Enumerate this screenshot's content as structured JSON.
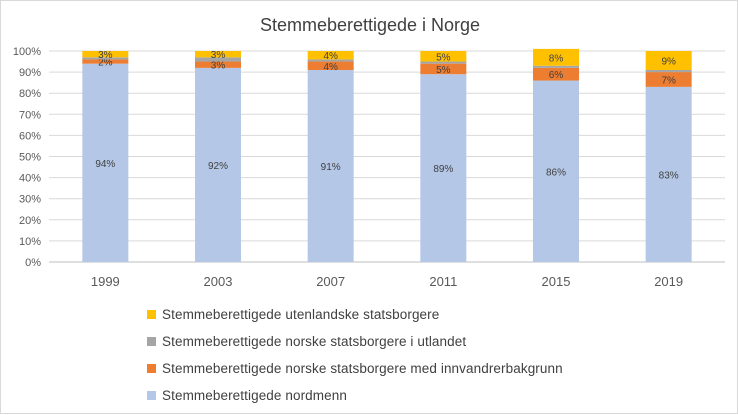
{
  "chart_data": {
    "type": "bar",
    "stacked": true,
    "title": "Stemmeberettigede i Norge",
    "categories": [
      "1999",
      "2003",
      "2007",
      "2011",
      "2015",
      "2019"
    ],
    "y_ticks": [
      "0%",
      "10%",
      "20%",
      "30%",
      "40%",
      "50%",
      "60%",
      "70%",
      "80%",
      "90%",
      "100%"
    ],
    "ylim": [
      0,
      100
    ],
    "series": [
      {
        "name": "Stemmeberettigede nordmenn",
        "color": "#b4c7e7",
        "values": [
          94,
          92,
          91,
          89,
          86,
          83
        ],
        "labels": [
          "94%",
          "92%",
          "91%",
          "89%",
          "86%",
          "83%"
        ]
      },
      {
        "name": "Stemmeberettigede norske statsborgere med innvandrerbakgrunn",
        "color": "#ed7d31",
        "values": [
          2,
          3,
          4,
          5,
          6,
          7
        ],
        "labels": [
          "2%",
          "3%",
          "4%",
          "5%",
          "6%",
          "7%"
        ]
      },
      {
        "name": "Stemmeberettigede norske statsborgere i utlandet",
        "color": "#a5a5a5",
        "values": [
          1,
          2,
          1,
          1,
          1,
          1
        ],
        "labels": []
      },
      {
        "name": "Stemmeberettigede utenlandske statsborgere",
        "color": "#ffc000",
        "values": [
          3,
          3,
          4,
          5,
          8,
          9
        ],
        "labels": [
          "3%",
          "3%",
          "4%",
          "5%",
          "8%",
          "9%"
        ]
      }
    ],
    "legend_order": [
      3,
      2,
      1,
      0
    ],
    "legend_position": "bottom"
  }
}
